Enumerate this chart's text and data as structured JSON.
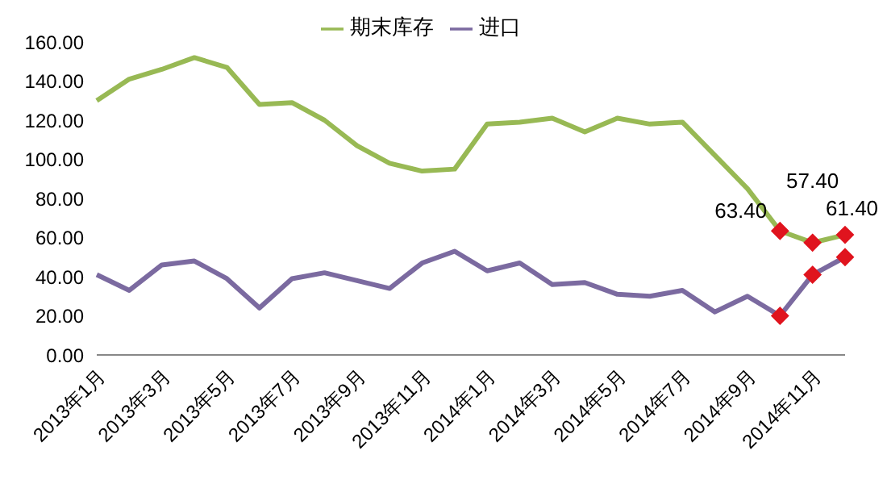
{
  "chart_data": {
    "type": "line",
    "categories": [
      "2013年1月",
      null,
      "2013年3月",
      null,
      "2013年5月",
      null,
      "2013年7月",
      null,
      "2013年9月",
      null,
      "2013年11月",
      null,
      "2014年1月",
      null,
      "2014年3月",
      null,
      "2014年5月",
      null,
      "2014年7月",
      null,
      "2014年9月",
      null,
      "2014年11月",
      null
    ],
    "series": [
      {
        "name": "进口",
        "color": "#7b6aa0",
        "values": [
          41,
          33,
          46,
          48,
          39,
          24,
          39,
          42,
          38,
          34,
          47,
          53,
          43,
          47,
          36,
          37,
          31,
          30,
          33,
          22,
          30,
          20,
          41,
          50
        ],
        "colors": [
          null,
          null,
          null,
          null,
          null,
          null,
          null,
          null,
          null,
          null,
          null,
          null,
          null,
          null,
          null,
          null,
          null,
          null,
          null,
          null,
          null,
          "#e0141e",
          "#e0141e",
          "#e0141e"
        ]
      },
      {
        "name": "期末库存",
        "color": "#98b954",
        "values": [
          130,
          141,
          146,
          152,
          147,
          128,
          129,
          120,
          107,
          98,
          94,
          95,
          118,
          119,
          121,
          114,
          121,
          118,
          119,
          102,
          85,
          63.4,
          57.4,
          61.4
        ],
        "colors": [
          null,
          null,
          null,
          null,
          null,
          null,
          null,
          null,
          null,
          null,
          null,
          null,
          null,
          null,
          null,
          null,
          null,
          null,
          null,
          null,
          null,
          "#e0141e",
          "#e0141e",
          "#e0141e"
        ],
        "value_labels": [
          null,
          null,
          null,
          null,
          null,
          null,
          null,
          null,
          null,
          null,
          null,
          null,
          null,
          null,
          null,
          null,
          null,
          null,
          null,
          null,
          null,
          "63.40",
          "57.40",
          "61.40"
        ]
      }
    ],
    "ylim": [
      0,
      160
    ],
    "yticks": [
      {
        "value": 0,
        "label": "0.00"
      },
      {
        "value": 20,
        "label": "20.00"
      },
      {
        "value": 40,
        "label": "40.00"
      },
      {
        "value": 60,
        "label": "60.00"
      },
      {
        "value": 80,
        "label": "80.00"
      },
      {
        "value": 100,
        "label": "100.00"
      },
      {
        "value": 120,
        "label": "120.00"
      },
      {
        "value": 140,
        "label": "140.00"
      },
      {
        "value": 160,
        "label": "160.00"
      }
    ],
    "grid": false,
    "legend": "top",
    "line_style": "solid"
  }
}
